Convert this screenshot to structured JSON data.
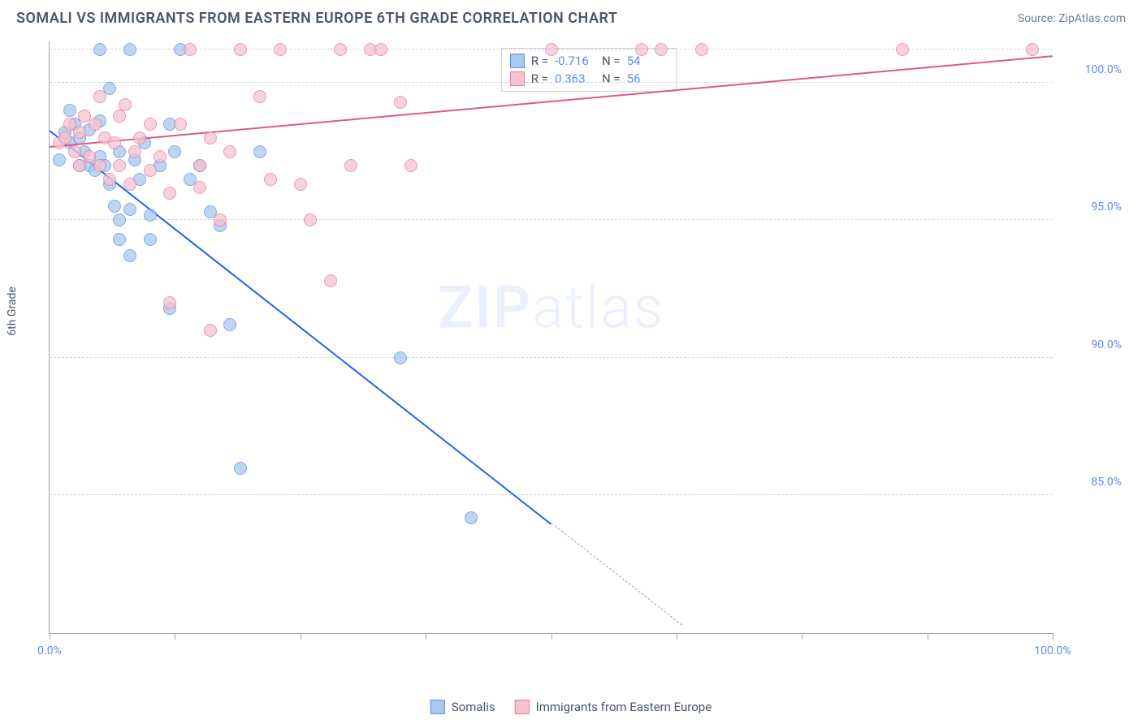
{
  "header": {
    "title": "SOMALI VS IMMIGRANTS FROM EASTERN EUROPE 6TH GRADE CORRELATION CHART",
    "source": "Source: ZipAtlas.com"
  },
  "chart": {
    "type": "scatter",
    "y_axis_title": "6th Grade",
    "background_color": "#ffffff",
    "grid_color": "#d1d5db",
    "axis_color": "#9ca3af",
    "label_color": "#5b8def",
    "label_fontsize": 14,
    "xlim": [
      0,
      100
    ],
    "ylim": [
      80,
      101.5
    ],
    "x_ticks": [
      0,
      12.5,
      25,
      37.5,
      50,
      62.5,
      75,
      87.5,
      100
    ],
    "x_tick_labels": {
      "0": "0.0%",
      "100": "100.0%"
    },
    "y_grid": [
      85,
      90,
      95,
      100,
      101.2
    ],
    "y_tick_labels": {
      "85": "85.0%",
      "90": "90.0%",
      "95": "95.0%",
      "100": "100.0%"
    },
    "marker_radius": 8,
    "watermark": "ZIPatlas",
    "series": [
      {
        "name": "Somalis",
        "fill": "#a8c8ec",
        "stroke": "#5b8def",
        "line_color": "#2563eb",
        "R": "-0.716",
        "N": "54",
        "trend": {
          "x1": 0,
          "y1": 98.3,
          "x2": 50,
          "y2": 84.0
        },
        "trend_dash": {
          "x1": 50,
          "y1": 84.0,
          "x2": 63,
          "y2": 80.3
        },
        "points": [
          [
            1,
            97.2
          ],
          [
            1.5,
            98.2
          ],
          [
            2,
            97.8
          ],
          [
            2,
            99.0
          ],
          [
            2.5,
            98.5
          ],
          [
            3,
            97.0
          ],
          [
            3,
            98.0
          ],
          [
            3.5,
            97.5
          ],
          [
            4,
            98.3
          ],
          [
            4,
            97.0
          ],
          [
            4.5,
            96.8
          ],
          [
            5,
            101.2
          ],
          [
            5,
            98.6
          ],
          [
            5,
            97.3
          ],
          [
            5.5,
            97.0
          ],
          [
            6,
            99.8
          ],
          [
            6,
            96.3
          ],
          [
            6.5,
            95.5
          ],
          [
            7,
            94.3
          ],
          [
            7,
            95.0
          ],
          [
            7,
            97.5
          ],
          [
            8,
            101.2
          ],
          [
            8,
            93.7
          ],
          [
            8,
            95.4
          ],
          [
            8.5,
            97.2
          ],
          [
            9,
            96.5
          ],
          [
            9.5,
            97.8
          ],
          [
            10,
            94.3
          ],
          [
            10,
            95.2
          ],
          [
            11,
            97.0
          ],
          [
            12,
            98.5
          ],
          [
            12,
            91.8
          ],
          [
            12.5,
            97.5
          ],
          [
            13,
            101.2
          ],
          [
            14,
            96.5
          ],
          [
            15,
            97.0
          ],
          [
            16,
            95.3
          ],
          [
            17,
            94.8
          ],
          [
            18,
            91.2
          ],
          [
            19,
            86.0
          ],
          [
            21,
            97.5
          ],
          [
            35,
            90.0
          ],
          [
            42,
            84.2
          ]
        ]
      },
      {
        "name": "Immigrants from Eastern Europe",
        "fill": "#f5c2cf",
        "stroke": "#e87a9a",
        "line_color": "#db5a87",
        "R": "0.363",
        "N": "56",
        "trend": {
          "x1": 0,
          "y1": 97.7,
          "x2": 100,
          "y2": 101.0
        },
        "points": [
          [
            1,
            97.8
          ],
          [
            1.5,
            98.0
          ],
          [
            2,
            98.5
          ],
          [
            2.5,
            97.5
          ],
          [
            3,
            98.2
          ],
          [
            3,
            97.0
          ],
          [
            3.5,
            98.8
          ],
          [
            4,
            97.3
          ],
          [
            4.5,
            98.5
          ],
          [
            5,
            99.5
          ],
          [
            5,
            97.0
          ],
          [
            5.5,
            98.0
          ],
          [
            6,
            96.5
          ],
          [
            6.5,
            97.8
          ],
          [
            7,
            98.8
          ],
          [
            7,
            97.0
          ],
          [
            7.5,
            99.2
          ],
          [
            8,
            96.3
          ],
          [
            8.5,
            97.5
          ],
          [
            9,
            98.0
          ],
          [
            10,
            96.8
          ],
          [
            10,
            98.5
          ],
          [
            11,
            97.3
          ],
          [
            12,
            96.0
          ],
          [
            12,
            92.0
          ],
          [
            13,
            98.5
          ],
          [
            14,
            101.2
          ],
          [
            15,
            97.0
          ],
          [
            15,
            96.2
          ],
          [
            16,
            98.0
          ],
          [
            16,
            91.0
          ],
          [
            17,
            95.0
          ],
          [
            18,
            97.5
          ],
          [
            19,
            101.2
          ],
          [
            21,
            99.5
          ],
          [
            22,
            96.5
          ],
          [
            23,
            101.2
          ],
          [
            25,
            96.3
          ],
          [
            26,
            95.0
          ],
          [
            28,
            92.8
          ],
          [
            29,
            101.2
          ],
          [
            30,
            97.0
          ],
          [
            32,
            101.2
          ],
          [
            33,
            101.2
          ],
          [
            35,
            99.3
          ],
          [
            36,
            97.0
          ],
          [
            50,
            101.2
          ],
          [
            59,
            101.2
          ],
          [
            61,
            101.2
          ],
          [
            65,
            101.2
          ],
          [
            85,
            101.2
          ],
          [
            98,
            101.2
          ]
        ]
      }
    ],
    "stats_box": {
      "row1_prefix": "R =",
      "row1_mid": "N =",
      "row2_prefix": "R =",
      "row2_mid": "N ="
    },
    "legend": {
      "item1": "Somalis",
      "item2": "Immigrants from Eastern Europe"
    }
  }
}
